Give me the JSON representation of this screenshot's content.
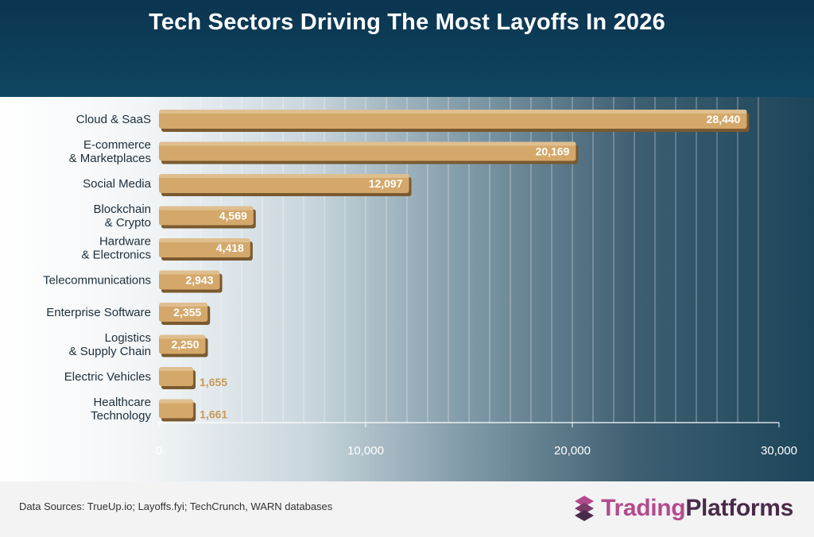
{
  "title": "Tech Sectors Driving The Most Layoffs In 2026",
  "footer": {
    "source": "Data Sources: TrueUp.io; Layoffs.fyi; TechCrunch, WARN databases",
    "brand_part1": "Trading",
    "brand_part2": "Platforms"
  },
  "colors": {
    "bar": "#d4a86a",
    "bar_shadow": "#7a5a30",
    "header_bg": "#0b3550",
    "label_outside": "#c99a55",
    "brand_pink": "#b24b8e",
    "brand_dark": "#4a2a4a"
  },
  "chart_data": {
    "type": "bar",
    "orientation": "horizontal",
    "title": "Tech Sectors Driving The Most Layoffs In 2026",
    "categories": [
      [
        "Cloud & SaaS"
      ],
      [
        "E-commerce",
        "& Marketplaces"
      ],
      [
        "Social Media"
      ],
      [
        "Blockchain",
        "& Crypto"
      ],
      [
        "Hardware",
        "& Electronics"
      ],
      [
        "Telecommunications"
      ],
      [
        "Enterprise Software"
      ],
      [
        "Logistics",
        "& Supply Chain"
      ],
      [
        "Electric Vehicles"
      ],
      [
        "Healthcare",
        "Technology"
      ]
    ],
    "values": [
      28440,
      20169,
      12097,
      4569,
      4418,
      2943,
      2355,
      2250,
      1655,
      1661
    ],
    "value_labels": [
      "28,440",
      "20,169",
      "12,097",
      "4,569",
      "4,418",
      "2,943",
      "2,355",
      "2,250",
      "1,655",
      "1,661"
    ],
    "xlim": [
      0,
      30000
    ],
    "x_ticks": [
      0,
      10000,
      20000,
      30000
    ],
    "x_tick_labels": [
      "0",
      "10,000",
      "20,000",
      "30,000"
    ],
    "grid": true
  }
}
